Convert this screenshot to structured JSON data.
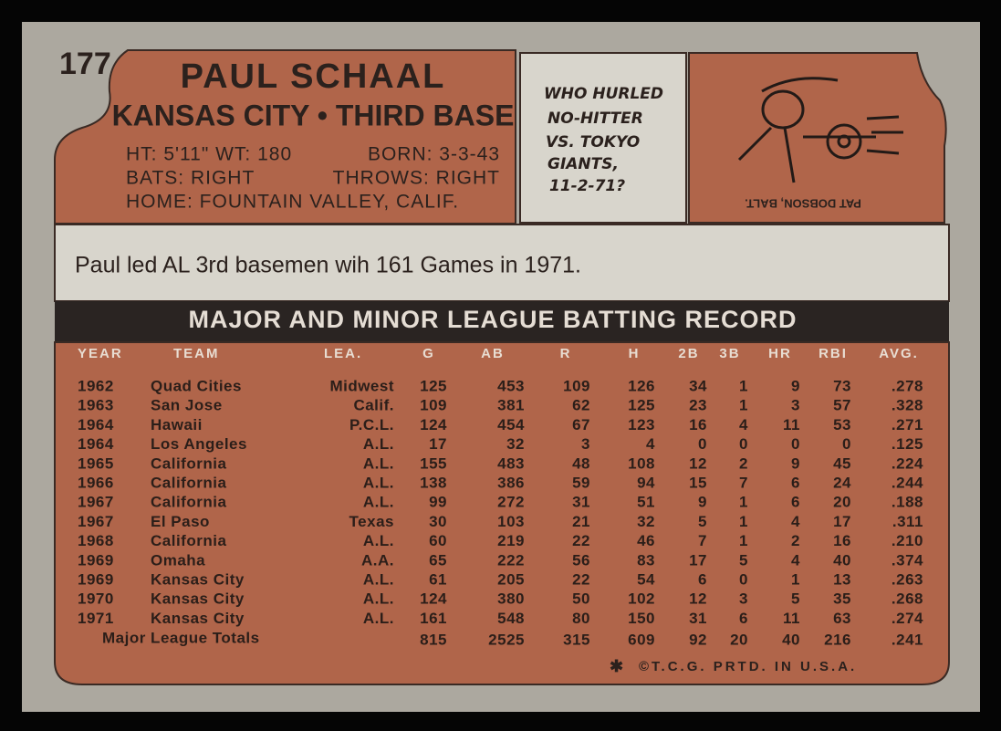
{
  "card_number": "177",
  "header": {
    "name": "PAUL SCHAAL",
    "team_position": "KANSAS CITY • THIRD BASE",
    "height_weight": "HT: 5'11\" WT: 180",
    "born": "BORN: 3-3-43",
    "bats": "BATS: RIGHT",
    "throws": "THROWS: RIGHT",
    "home": "HOME: FOUNTAIN VALLEY, CALIF."
  },
  "quiz": {
    "lines": [
      "WHO HURLED",
      "NO-HITTER",
      "VS. TOKYO",
      "GIANTS,",
      "11-2-71?"
    ],
    "answer": "PAT DOBSON, BALT."
  },
  "blurb": "Paul led AL 3rd basemen wih 161 Games in 1971.",
  "table": {
    "title": "MAJOR AND MINOR LEAGUE BATTING RECORD",
    "columns": [
      "YEAR",
      "TEAM",
      "LEA.",
      "G",
      "AB",
      "R",
      "H",
      "2B",
      "3B",
      "HR",
      "RBI",
      "AVG."
    ],
    "rows": [
      [
        "1962",
        "Quad Cities",
        "Midwest",
        "125",
        "453",
        "109",
        "126",
        "34",
        "1",
        "9",
        "73",
        ".278"
      ],
      [
        "1963",
        "San Jose",
        "Calif.",
        "109",
        "381",
        "62",
        "125",
        "23",
        "1",
        "3",
        "57",
        ".328"
      ],
      [
        "1964",
        "Hawaii",
        "P.C.L.",
        "124",
        "454",
        "67",
        "123",
        "16",
        "4",
        "11",
        "53",
        ".271"
      ],
      [
        "1964",
        "Los Angeles",
        "A.L.",
        "17",
        "32",
        "3",
        "4",
        "0",
        "0",
        "0",
        "0",
        ".125"
      ],
      [
        "1965",
        "California",
        "A.L.",
        "155",
        "483",
        "48",
        "108",
        "12",
        "2",
        "9",
        "45",
        ".224"
      ],
      [
        "1966",
        "California",
        "A.L.",
        "138",
        "386",
        "59",
        "94",
        "15",
        "7",
        "6",
        "24",
        ".244"
      ],
      [
        "1967",
        "California",
        "A.L.",
        "99",
        "272",
        "31",
        "51",
        "9",
        "1",
        "6",
        "20",
        ".188"
      ],
      [
        "1967",
        "El Paso",
        "Texas",
        "30",
        "103",
        "21",
        "32",
        "5",
        "1",
        "4",
        "17",
        ".311"
      ],
      [
        "1968",
        "California",
        "A.L.",
        "60",
        "219",
        "22",
        "46",
        "7",
        "1",
        "2",
        "16",
        ".210"
      ],
      [
        "1969",
        "Omaha",
        "A.A.",
        "65",
        "222",
        "56",
        "83",
        "17",
        "5",
        "4",
        "40",
        ".374"
      ],
      [
        "1969",
        "Kansas City",
        "A.L.",
        "61",
        "205",
        "22",
        "54",
        "6",
        "0",
        "1",
        "13",
        ".263"
      ],
      [
        "1970",
        "Kansas City",
        "A.L.",
        "124",
        "380",
        "50",
        "102",
        "12",
        "3",
        "5",
        "35",
        ".268"
      ],
      [
        "1971",
        "Kansas City",
        "A.L.",
        "161",
        "548",
        "80",
        "150",
        "31",
        "6",
        "11",
        "63",
        ".274"
      ]
    ],
    "totals": {
      "label": "Major League Totals",
      "values": [
        "815",
        "2525",
        "315",
        "609",
        "92",
        "20",
        "40",
        "216",
        ".241"
      ]
    }
  },
  "footer": "©T.C.G. PRTD. IN U.S.A."
}
